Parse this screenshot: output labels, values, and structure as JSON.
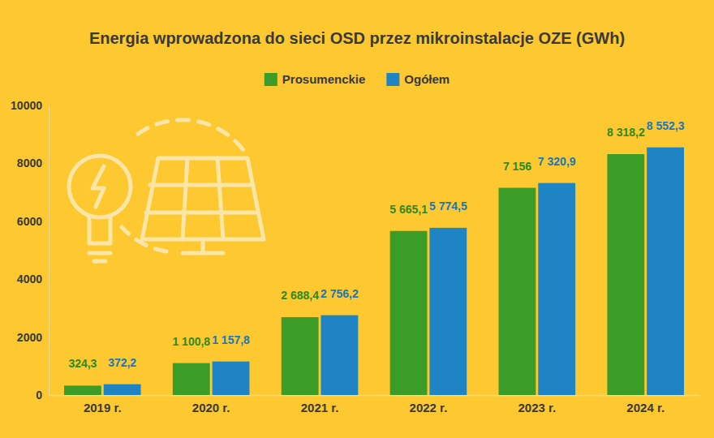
{
  "chart_data": {
    "type": "bar",
    "title": "Energia wprowadzona do sieci OSD przez mikroinstalacje OZE (GWh)",
    "categories": [
      "2019 r.",
      "2020 r.",
      "2021 r.",
      "2022 r.",
      "2023 r.",
      "2024 r."
    ],
    "series": [
      {
        "name": "Prosumenckie",
        "color": "#3b9c27",
        "values": [
          324.3,
          1100.8,
          2688.4,
          5665.1,
          7156,
          8318.2
        ],
        "value_labels": [
          "324,3",
          "1 100,8",
          "2 688,4",
          "5 665,1",
          "7 156",
          "8 318,2"
        ]
      },
      {
        "name": "Ogółem",
        "color": "#1f84c4",
        "values": [
          372.2,
          1157.8,
          2756.2,
          5774.5,
          7320.9,
          8552.3
        ],
        "value_labels": [
          "372,2",
          "1 157,8",
          "2 756,2",
          "5 774,5",
          "7 320,9",
          "8 552,3"
        ]
      }
    ],
    "ylim": [
      0,
      10000
    ],
    "yticks": [
      0,
      2000,
      4000,
      6000,
      8000,
      10000
    ],
    "grid": false,
    "legend": "top",
    "data_labels": true
  }
}
